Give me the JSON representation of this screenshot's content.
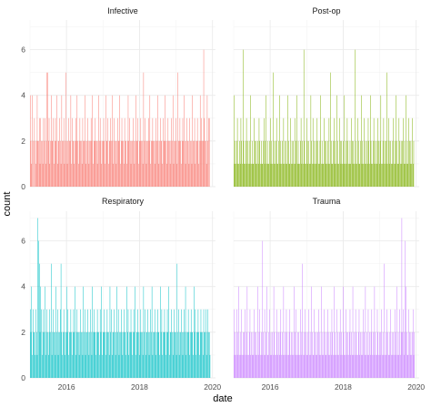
{
  "chart_data": {
    "type": "bar",
    "xlabel": "date",
    "ylabel": "count",
    "x_range": [
      "2015-01-01",
      "2020-01-31"
    ],
    "x_ticks": [
      "2016",
      "2018",
      "2020"
    ],
    "ylim": [
      0,
      7.3
    ],
    "y_ticks": [
      0,
      2,
      4,
      6
    ],
    "grid": true,
    "legend": "none",
    "facets": [
      {
        "name": "Infective",
        "color": "#F8766D",
        "x_start": "2015-01-01",
        "period_days": 7,
        "values": [
          4,
          2,
          1,
          4,
          2,
          0,
          3,
          2,
          1,
          2,
          4,
          2,
          2,
          3,
          1,
          3,
          2,
          2,
          1,
          3,
          2,
          3,
          1,
          2,
          5,
          5,
          2,
          3,
          1,
          2,
          4,
          2,
          2,
          3,
          1,
          2,
          3,
          2,
          4,
          1,
          2,
          2,
          3,
          2,
          1,
          4,
          2,
          2,
          3,
          1,
          2,
          5,
          2,
          1,
          2,
          3,
          2,
          2,
          4,
          1,
          3,
          2,
          2,
          1,
          2,
          3,
          2,
          4,
          2,
          1,
          2,
          3,
          2,
          2,
          1,
          3,
          2,
          2,
          4,
          2,
          1,
          2,
          3,
          2,
          1,
          2,
          2,
          3,
          2,
          4,
          1,
          2,
          2,
          3,
          2,
          2,
          1,
          2,
          4,
          2,
          3,
          2,
          1,
          2,
          2,
          3,
          2,
          1,
          4,
          2,
          2,
          3,
          1,
          2,
          2,
          3,
          2,
          4,
          2,
          1,
          3,
          2,
          2,
          1,
          2,
          3,
          2,
          2,
          4,
          1,
          2,
          3,
          2,
          2,
          1,
          3,
          2,
          2,
          1,
          2,
          4,
          2,
          3,
          2,
          1,
          2,
          2,
          3,
          2,
          1,
          2,
          4,
          2,
          2,
          3,
          1,
          2,
          2,
          3,
          2,
          2,
          1,
          5,
          2,
          3,
          2,
          1,
          2,
          2,
          3,
          2,
          4,
          1,
          2,
          2,
          3,
          2,
          2,
          1,
          2,
          3,
          2,
          4,
          2,
          1,
          2,
          3,
          2,
          2,
          1,
          3,
          2,
          2,
          4,
          2,
          1,
          2,
          3,
          2,
          2,
          1,
          2,
          3,
          2,
          4,
          1,
          2,
          2,
          3,
          2,
          1,
          5,
          2,
          2,
          3,
          2,
          1,
          2,
          3,
          2,
          4,
          2,
          1,
          2,
          3,
          2,
          2,
          1,
          3,
          2,
          2,
          1,
          4,
          2,
          2,
          3,
          1,
          2,
          2,
          3,
          2,
          1,
          2,
          4,
          2,
          3,
          2,
          2,
          6,
          3,
          2,
          2,
          1,
          4,
          2,
          3,
          3
        ]
      },
      {
        "name": "Post-op",
        "color": "#7CAE00",
        "x_start": "2015-01-01",
        "period_days": 7,
        "values": [
          4,
          1,
          2,
          1,
          2,
          3,
          1,
          1,
          2,
          1,
          3,
          2,
          1,
          6,
          2,
          1,
          1,
          2,
          3,
          1,
          2,
          1,
          2,
          1,
          4,
          1,
          2,
          1,
          1,
          3,
          2,
          1,
          2,
          1,
          2,
          1,
          3,
          2,
          1,
          2,
          1,
          1,
          2,
          3,
          1,
          2,
          4,
          1,
          2,
          1,
          1,
          2,
          3,
          1,
          2,
          1,
          5,
          1,
          2,
          1,
          2,
          3,
          1,
          1,
          2,
          4,
          1,
          2,
          1,
          2,
          1,
          3,
          1,
          2,
          1,
          2,
          1,
          4,
          2,
          1,
          1,
          3,
          1,
          2,
          1,
          2,
          1,
          3,
          1,
          2,
          4,
          1,
          2,
          1,
          1,
          2,
          3,
          1,
          2,
          1,
          6,
          2,
          1,
          1,
          3,
          2,
          1,
          2,
          1,
          1,
          4,
          2,
          1,
          3,
          1,
          2,
          1,
          2,
          1,
          3,
          2,
          1,
          1,
          2,
          4,
          1,
          2,
          1,
          1,
          3,
          2,
          1,
          2,
          1,
          2,
          1,
          3,
          1,
          5,
          2,
          1,
          1,
          2,
          3,
          1,
          2,
          1,
          4,
          2,
          1,
          1,
          3,
          2,
          1,
          2,
          1,
          2,
          1,
          4,
          1,
          2,
          1,
          3,
          2,
          1,
          1,
          2,
          1,
          3,
          2,
          1,
          2,
          1,
          6,
          1,
          2,
          1,
          3,
          2,
          1,
          1,
          2,
          4,
          1,
          2,
          1,
          3,
          1,
          2,
          1,
          2,
          1,
          3,
          2,
          1,
          4,
          2,
          1,
          1,
          2,
          3,
          1,
          2,
          1,
          2,
          1,
          3,
          2,
          1,
          2,
          4,
          1,
          1,
          2,
          3,
          1,
          2,
          1,
          2,
          5,
          1,
          3,
          2,
          1,
          2,
          1,
          1,
          2,
          3,
          1,
          2,
          1,
          4,
          2,
          1,
          1,
          3,
          2,
          1,
          2,
          1,
          2,
          3,
          1,
          2,
          1,
          4,
          1,
          2,
          1,
          3,
          2,
          1,
          2,
          1,
          3,
          1,
          2
        ]
      },
      {
        "name": "Respiratory",
        "color": "#00BFC4",
        "x_start": "2015-01-01",
        "period_days": 7,
        "values": [
          3,
          2,
          4,
          1,
          3,
          2,
          2,
          1,
          3,
          2,
          1,
          7,
          6,
          5,
          2,
          4,
          3,
          1,
          2,
          3,
          2,
          4,
          1,
          2,
          3,
          2,
          1,
          2,
          3,
          2,
          5,
          1,
          2,
          3,
          2,
          2,
          1,
          4,
          2,
          3,
          1,
          2,
          2,
          3,
          5,
          2,
          1,
          2,
          3,
          2,
          1,
          2,
          4,
          2,
          3,
          1,
          2,
          2,
          3,
          2,
          1,
          2,
          3,
          2,
          4,
          1,
          2,
          3,
          2,
          2,
          1,
          2,
          3,
          2,
          2,
          1,
          4,
          2,
          3,
          1,
          2,
          2,
          3,
          2,
          1,
          2,
          3,
          2,
          1,
          4,
          2,
          3,
          2,
          2,
          1,
          2,
          3,
          2,
          2,
          1,
          3,
          2,
          4,
          1,
          2,
          2,
          3,
          2,
          1,
          2,
          3,
          2,
          2,
          1,
          4,
          2,
          3,
          1,
          2,
          2,
          3,
          2,
          1,
          2,
          4,
          2,
          3,
          1,
          2,
          2,
          3,
          2,
          1,
          2,
          3,
          2,
          2,
          1,
          4,
          2,
          3,
          1,
          2,
          2,
          3,
          2,
          1,
          2,
          3,
          2,
          4,
          1,
          2,
          2,
          3,
          2,
          1,
          2,
          3,
          2,
          2,
          1,
          4,
          2,
          3,
          1,
          2,
          2,
          3,
          2,
          1,
          2,
          3,
          2,
          4,
          1,
          2,
          2,
          3,
          2,
          1,
          2,
          3,
          2,
          2,
          1,
          4,
          2,
          3,
          1,
          2,
          2,
          3,
          2,
          1,
          2,
          3,
          2,
          4,
          1,
          2,
          2,
          3,
          2,
          1,
          2,
          3,
          2,
          2,
          1,
          5,
          2,
          3,
          1,
          2,
          2,
          3,
          2,
          1,
          2,
          3,
          2,
          4,
          1,
          2,
          2,
          3,
          2,
          1,
          2,
          3,
          2,
          2,
          1,
          4,
          2,
          3,
          1,
          2,
          2,
          3,
          2,
          1,
          2,
          3,
          2,
          2,
          1,
          3,
          2,
          2,
          3,
          1,
          2,
          3,
          2,
          2,
          1
        ]
      },
      {
        "name": "Trauma",
        "color": "#C77CFF",
        "x_start": "2015-01-01",
        "period_days": 7,
        "values": [
          3,
          1,
          2,
          1,
          3,
          2,
          1,
          4,
          1,
          2,
          1,
          3,
          1,
          2,
          1,
          2,
          3,
          1,
          2,
          4,
          1,
          1,
          2,
          3,
          1,
          2,
          1,
          2,
          1,
          3,
          2,
          1,
          2,
          1,
          4,
          1,
          2,
          3,
          1,
          2,
          1,
          6,
          2,
          1,
          3,
          1,
          2,
          4,
          1,
          1,
          2,
          3,
          1,
          2,
          1,
          2,
          1,
          4,
          2,
          1,
          1,
          3,
          2,
          1,
          2,
          1,
          2,
          3,
          1,
          2,
          1,
          4,
          1,
          2,
          1,
          3,
          2,
          1,
          1,
          2,
          3,
          1,
          2,
          1,
          2,
          1,
          4,
          2,
          1,
          3,
          1,
          2,
          1,
          2,
          1,
          3,
          1,
          2,
          5,
          1,
          2,
          1,
          3,
          2,
          1,
          1,
          2,
          3,
          1,
          2,
          1,
          4,
          2,
          1,
          1,
          3,
          2,
          1,
          2,
          1,
          2,
          3,
          1,
          2,
          1,
          4,
          1,
          2,
          1,
          3,
          2,
          1,
          1,
          2,
          3,
          1,
          2,
          1,
          2,
          1,
          3,
          2,
          1,
          4,
          1,
          2,
          1,
          3,
          1,
          2,
          1,
          2,
          3,
          1,
          2,
          1,
          4,
          2,
          1,
          1,
          3,
          2,
          1,
          2,
          1,
          2,
          3,
          1,
          2,
          1,
          4,
          1,
          2,
          1,
          3,
          2,
          1,
          1,
          2,
          3,
          1,
          2,
          1,
          2,
          1,
          3,
          2,
          1,
          4,
          1,
          2,
          1,
          3,
          1,
          2,
          1,
          2,
          3,
          1,
          2,
          1,
          4,
          2,
          1,
          1,
          3,
          2,
          1,
          2,
          1,
          2,
          3,
          1,
          2,
          1,
          5,
          1,
          2,
          1,
          3,
          2,
          1,
          1,
          2,
          3,
          1,
          2,
          1,
          2,
          1,
          3,
          2,
          1,
          4,
          1,
          2,
          1,
          3,
          1,
          2,
          7,
          2,
          3,
          1,
          2,
          6,
          4,
          2,
          1,
          1,
          3,
          2,
          1,
          2,
          1,
          2,
          3,
          1,
          2
        ]
      }
    ]
  }
}
